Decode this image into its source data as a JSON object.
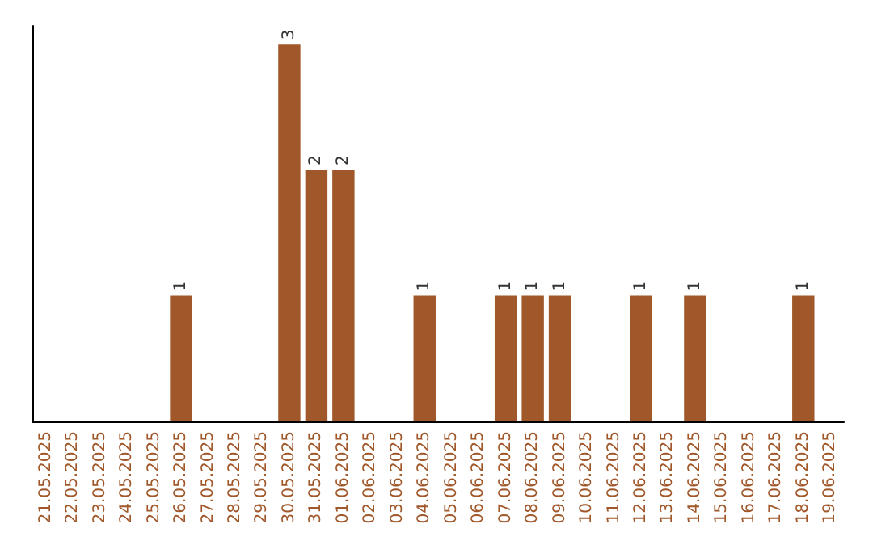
{
  "chart_data": {
    "type": "bar",
    "categories": [
      "21.05.2025",
      "22.05.2025",
      "23.05.2025",
      "24.05.2025",
      "25.05.2025",
      "26.05.2025",
      "27.05.2025",
      "28.05.2025",
      "29.05.2025",
      "30.05.2025",
      "31.05.2025",
      "01.06.2025",
      "02.06.2025",
      "03.06.2025",
      "04.06.2025",
      "05.06.2025",
      "06.06.2025",
      "07.06.2025",
      "08.06.2025",
      "09.06.2025",
      "10.06.2025",
      "11.06.2025",
      "12.06.2025",
      "13.06.2025",
      "14.06.2025",
      "15.06.2025",
      "16.06.2025",
      "17.06.2025",
      "18.06.2025",
      "19.06.2025"
    ],
    "values": [
      0,
      0,
      0,
      0,
      0,
      1,
      0,
      0,
      0,
      3,
      2,
      2,
      0,
      0,
      1,
      0,
      0,
      1,
      1,
      1,
      0,
      0,
      1,
      0,
      1,
      0,
      0,
      0,
      1,
      0
    ],
    "value_labels": [
      null,
      null,
      null,
      null,
      null,
      "1",
      null,
      null,
      null,
      "3",
      "2",
      "2",
      null,
      null,
      "1",
      null,
      null,
      "1",
      "1",
      "1",
      null,
      null,
      "1",
      null,
      "1",
      null,
      null,
      null,
      "1",
      null
    ],
    "color": "#a0582a",
    "ylim": [
      0,
      3.15
    ],
    "tick_labels": "x",
    "grid": false
  }
}
